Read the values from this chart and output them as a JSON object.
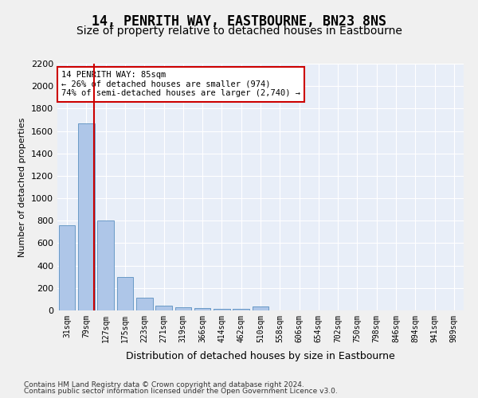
{
  "title": "14, PENRITH WAY, EASTBOURNE, BN23 8NS",
  "subtitle": "Size of property relative to detached houses in Eastbourne",
  "xlabel": "Distribution of detached houses by size in Eastbourne",
  "ylabel": "Number of detached properties",
  "footer_line1": "Contains HM Land Registry data © Crown copyright and database right 2024.",
  "footer_line2": "Contains public sector information licensed under the Open Government Licence v3.0.",
  "categories": [
    "31sqm",
    "79sqm",
    "127sqm",
    "175sqm",
    "223sqm",
    "271sqm",
    "319sqm",
    "366sqm",
    "414sqm",
    "462sqm",
    "510sqm",
    "558sqm",
    "606sqm",
    "654sqm",
    "702sqm",
    "750sqm",
    "798sqm",
    "846sqm",
    "894sqm",
    "941sqm",
    "989sqm"
  ],
  "values": [
    760,
    1670,
    800,
    295,
    115,
    40,
    25,
    18,
    14,
    13,
    32,
    0,
    0,
    0,
    0,
    0,
    0,
    0,
    0,
    0,
    0
  ],
  "bar_color": "#aec6e8",
  "bar_edge_color": "#5a8fc0",
  "background_color": "#e8eef8",
  "grid_color": "#ffffff",
  "ylim": [
    0,
    2200
  ],
  "yticks": [
    0,
    200,
    400,
    600,
    800,
    1000,
    1200,
    1400,
    1600,
    1800,
    2000,
    2200
  ],
  "property_line_x": 1.38,
  "property_line_color": "#cc0000",
  "annotation_text": "14 PENRITH WAY: 85sqm\n← 26% of detached houses are smaller (974)\n74% of semi-detached houses are larger (2,740) →",
  "annotation_box_color": "#ffffff",
  "annotation_box_edge": "#cc0000",
  "title_fontsize": 12,
  "subtitle_fontsize": 10,
  "footer_fontsize": 6.5
}
